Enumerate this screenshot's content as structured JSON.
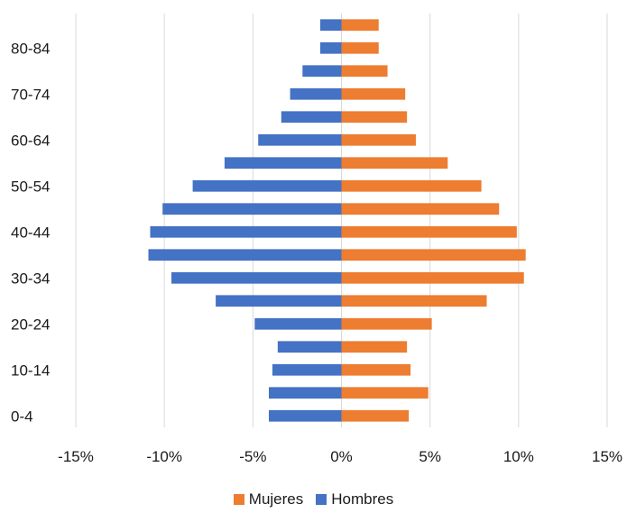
{
  "chart_data": {
    "type": "bar",
    "orientation": "horizontal",
    "stacked_diverging": true,
    "categories": [
      "0-4",
      "5-9",
      "10-14",
      "15-19",
      "20-24",
      "25-29",
      "30-34",
      "35-39",
      "40-44",
      "45-49",
      "50-54",
      "55-59",
      "60-64",
      "65-69",
      "70-74",
      "75-79",
      "80-84",
      "85+"
    ],
    "y_tick_labels": [
      "0-4",
      "10-14",
      "20-24",
      "30-34",
      "40-44",
      "50-54",
      "60-64",
      "70-74",
      "80-84"
    ],
    "x_tick_labels": [
      "-15%",
      "-10%",
      "-5%",
      "0%",
      "5%",
      "10%",
      "15%"
    ],
    "xlim": [
      -15,
      15
    ],
    "series": [
      {
        "name": "Mujeres",
        "color": "#ED7D31",
        "values": [
          3.8,
          4.9,
          3.9,
          3.7,
          5.1,
          8.2,
          10.3,
          10.4,
          9.9,
          8.9,
          7.9,
          6.0,
          4.2,
          3.7,
          3.6,
          2.6,
          2.1,
          2.1
        ]
      },
      {
        "name": "Hombres",
        "color": "#4472C4",
        "values": [
          -4.1,
          -4.1,
          -3.9,
          -3.6,
          -4.9,
          -7.1,
          -9.6,
          -10.9,
          -10.8,
          -10.1,
          -8.4,
          -6.6,
          -4.7,
          -3.4,
          -2.9,
          -2.2,
          -1.2,
          -1.2
        ]
      }
    ],
    "grid": true,
    "legend": "bottom",
    "title": "",
    "xlabel": "",
    "ylabel": ""
  }
}
